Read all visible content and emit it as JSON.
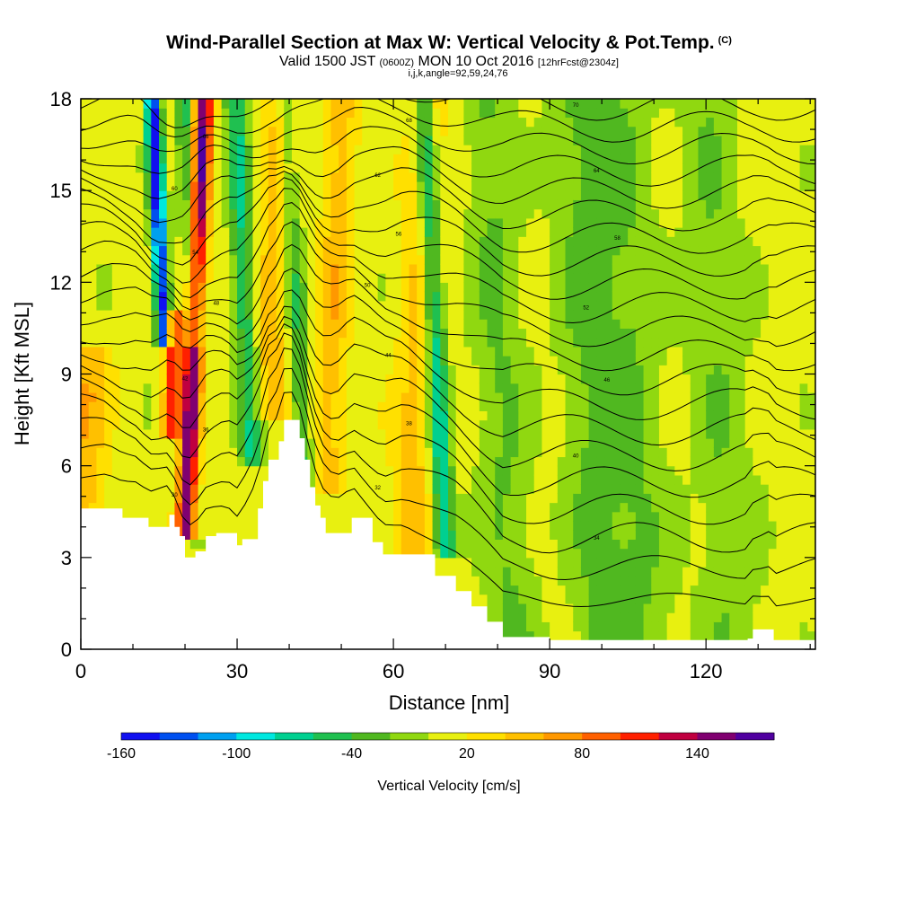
{
  "header": {
    "title": "Wind-Parallel Section at Max W: Vertical Velocity & Pot.Temp.",
    "copyright": "(C)",
    "valid_prefix": "Valid 1500 JST",
    "valid_utc": "(0600Z)",
    "valid_date": "MON 10 Oct 2016",
    "forecast": "[12hrFcst@2304z]",
    "indices": "i,j,k,angle=92,59,24,76"
  },
  "chart_data": {
    "type": "heatmap",
    "title": "Wind-Parallel Section at Max W: Vertical Velocity & Pot.Temp.",
    "xlabel": "Distance [nm]",
    "ylabel": "Height [Kft MSL]",
    "xlim": [
      0,
      141
    ],
    "ylim": [
      0,
      18
    ],
    "xticks": [
      0,
      30,
      60,
      90,
      120
    ],
    "yticks": [
      0,
      3,
      6,
      9,
      12,
      15,
      18
    ],
    "colorbar": {
      "label": "Vertical Velocity [cm/s]",
      "tick_labels": [
        "-160",
        "-100",
        "-40",
        "20",
        "80",
        "140"
      ],
      "tick_values": [
        -160,
        -100,
        -40,
        20,
        80,
        140
      ],
      "levels": [
        -160,
        -140,
        -120,
        -100,
        -80,
        -60,
        -40,
        -20,
        0,
        20,
        40,
        60,
        80,
        100,
        120,
        140,
        160
      ],
      "colors": [
        "#1010f0",
        "#0050f0",
        "#00a0f0",
        "#00e8e0",
        "#00d090",
        "#20c050",
        "#50b820",
        "#90d810",
        "#e8f010",
        "#ffe000",
        "#ffc000",
        "#ff9800",
        "#ff6000",
        "#ff2000",
        "#c00040",
        "#800070",
        "#5000a0"
      ]
    },
    "terrain_profile": [
      [
        0,
        4.6
      ],
      [
        5,
        4.6
      ],
      [
        8,
        4.3
      ],
      [
        11,
        4.3
      ],
      [
        13,
        4.0
      ],
      [
        17,
        4.4
      ],
      [
        18,
        4.0
      ],
      [
        19,
        3.7
      ],
      [
        20,
        3.0
      ],
      [
        22,
        3.2
      ],
      [
        24,
        3.7
      ],
      [
        26,
        3.8
      ],
      [
        28,
        3.8
      ],
      [
        30,
        3.4
      ],
      [
        31,
        3.6
      ],
      [
        34,
        4.6
      ],
      [
        35,
        5.5
      ],
      [
        36,
        6.2
      ],
      [
        38,
        6.8
      ],
      [
        39,
        7.5
      ],
      [
        41,
        7.5
      ],
      [
        42,
        6.9
      ],
      [
        43,
        6.2
      ],
      [
        44,
        5.3
      ],
      [
        45,
        4.7
      ],
      [
        46,
        4.3
      ],
      [
        47,
        3.8
      ],
      [
        50,
        3.8
      ],
      [
        52,
        4.3
      ],
      [
        56,
        3.5
      ],
      [
        58,
        3.1
      ],
      [
        62,
        3.1
      ],
      [
        68,
        2.4
      ],
      [
        72,
        1.9
      ],
      [
        75,
        1.4
      ],
      [
        78,
        0.9
      ],
      [
        81,
        0.4
      ],
      [
        90,
        0.3
      ],
      [
        100,
        0.3
      ],
      [
        110,
        0.3
      ],
      [
        118,
        0.3
      ],
      [
        128,
        0.35
      ],
      [
        129,
        0.65
      ],
      [
        132,
        0.65
      ],
      [
        133,
        0.3
      ],
      [
        141,
        0.3
      ]
    ],
    "updraft_bands": [
      [
        20,
        3.5,
        18
      ],
      [
        17,
        7,
        11
      ],
      [
        36,
        7.5,
        18
      ],
      [
        47,
        5,
        18
      ],
      [
        63,
        3,
        18
      ],
      [
        0,
        4.6,
        10
      ]
    ],
    "downdraft_bands": [
      [
        16,
        10,
        18
      ],
      [
        22,
        10,
        18
      ],
      [
        33,
        6,
        18
      ],
      [
        43,
        5,
        18
      ],
      [
        70,
        3,
        18
      ],
      [
        83,
        0.3,
        18
      ],
      [
        100,
        0.3,
        18
      ],
      [
        108,
        0.3,
        18
      ],
      [
        125,
        0.3,
        18
      ]
    ],
    "isentrope_labels": [
      "30",
      "32",
      "34",
      "36",
      "38",
      "40",
      "42",
      "44",
      "46",
      "48",
      "50",
      "52",
      "54",
      "56",
      "58",
      "60",
      "62",
      "64",
      "66",
      "68",
      "70"
    ]
  }
}
